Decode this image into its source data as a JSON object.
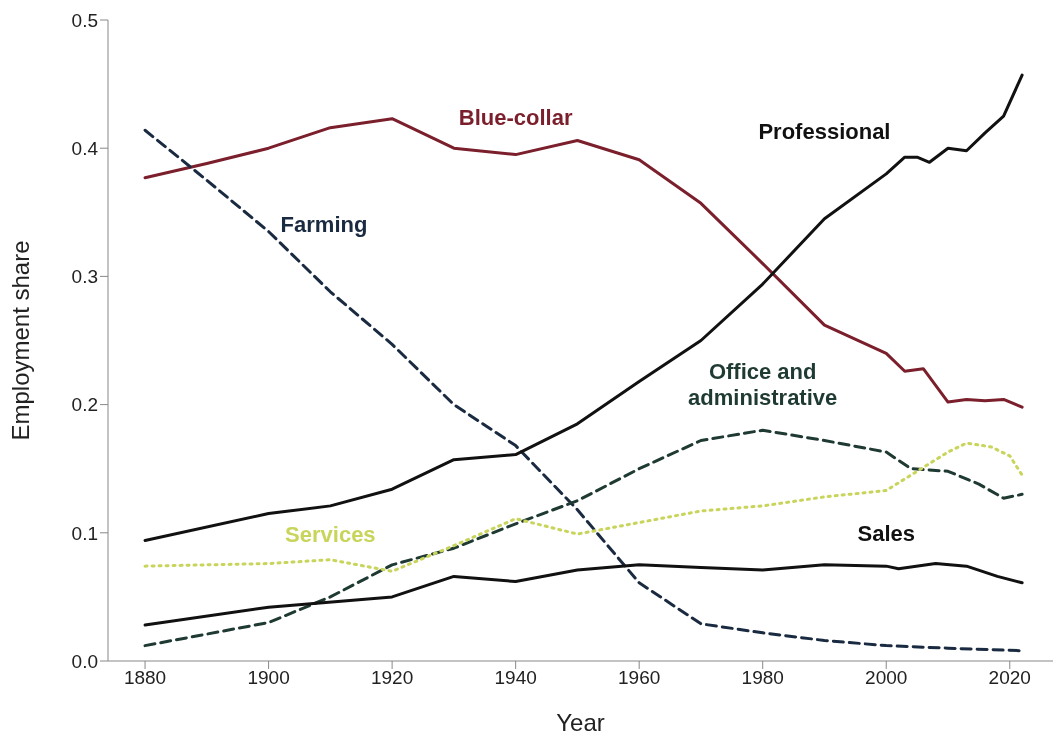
{
  "chart_data": {
    "type": "line",
    "xlabel": "Year",
    "ylabel": "Employment share",
    "xlim": [
      1874,
      2027
    ],
    "xticks": [
      1880,
      1900,
      1920,
      1940,
      1960,
      1980,
      2000,
      2020
    ],
    "ylim": [
      0,
      0.5
    ],
    "yticks": [
      {
        "value": 0,
        "label": "0.0"
      },
      0.1,
      0.2,
      0.3,
      0.4,
      0.5
    ],
    "marker": "none",
    "series": [
      {
        "name": "Blue-collar",
        "color": "#7a1f2b",
        "line_style": "solid",
        "x": [
          1880,
          1890,
          1900,
          1910,
          1920,
          1930,
          1940,
          1950,
          1960,
          1970,
          1980,
          1990,
          2000,
          2003,
          2006,
          2008,
          2010,
          2013,
          2016,
          2019,
          2022
        ],
        "values": [
          0.377,
          0.388,
          0.4,
          0.416,
          0.423,
          0.4,
          0.395,
          0.406,
          0.391,
          0.357,
          0.31,
          0.262,
          0.24,
          0.226,
          0.228,
          0.215,
          0.202,
          0.204,
          0.203,
          0.204,
          0.198
        ]
      },
      {
        "name": "Farming",
        "color": "#1a2a40",
        "line_style": "dashed",
        "x": [
          1880,
          1890,
          1900,
          1910,
          1920,
          1930,
          1940,
          1950,
          1960,
          1970,
          1980,
          1990,
          2000,
          2010,
          2022
        ],
        "values": [
          0.414,
          0.375,
          0.335,
          0.288,
          0.247,
          0.2,
          0.168,
          0.118,
          0.061,
          0.029,
          0.022,
          0.016,
          0.012,
          0.01,
          0.008
        ]
      },
      {
        "name": "Professional",
        "color": "#111111",
        "line_style": "solid",
        "x": [
          1880,
          1900,
          1910,
          1920,
          1930,
          1940,
          1950,
          1960,
          1970,
          1980,
          1990,
          2000,
          2003,
          2005,
          2007,
          2010,
          2013,
          2016,
          2019,
          2022
        ],
        "values": [
          0.094,
          0.115,
          0.121,
          0.134,
          0.157,
          0.161,
          0.185,
          0.218,
          0.25,
          0.294,
          0.345,
          0.38,
          0.393,
          0.393,
          0.389,
          0.4,
          0.398,
          0.412,
          0.425,
          0.457
        ]
      },
      {
        "name": "Office and administrative",
        "color": "#1f3a33",
        "line_style": "dashed",
        "x": [
          1880,
          1900,
          1910,
          1920,
          1930,
          1940,
          1950,
          1960,
          1970,
          1980,
          1990,
          2000,
          2004,
          2010,
          2015,
          2019,
          2022
        ],
        "values": [
          0.012,
          0.03,
          0.05,
          0.075,
          0.088,
          0.107,
          0.125,
          0.15,
          0.172,
          0.18,
          0.172,
          0.163,
          0.15,
          0.148,
          0.138,
          0.127,
          0.13
        ]
      },
      {
        "name": "Services",
        "color": "#c8d45a",
        "line_style": "dotted",
        "x": [
          1880,
          1900,
          1910,
          1920,
          1930,
          1940,
          1950,
          1960,
          1970,
          1980,
          1990,
          2000,
          2005,
          2010,
          2013,
          2017,
          2020,
          2022
        ],
        "values": [
          0.074,
          0.076,
          0.079,
          0.07,
          0.09,
          0.111,
          0.099,
          0.108,
          0.117,
          0.121,
          0.128,
          0.133,
          0.148,
          0.163,
          0.17,
          0.167,
          0.16,
          0.145
        ]
      },
      {
        "name": "Sales",
        "color": "#111111",
        "line_style": "solid",
        "x": [
          1880,
          1900,
          1920,
          1930,
          1940,
          1950,
          1960,
          1970,
          1980,
          1990,
          2000,
          2002,
          2008,
          2013,
          2018,
          2022
        ],
        "values": [
          0.028,
          0.042,
          0.05,
          0.066,
          0.062,
          0.071,
          0.075,
          0.073,
          0.071,
          0.075,
          0.074,
          0.072,
          0.076,
          0.074,
          0.066,
          0.061
        ]
      }
    ]
  }
}
